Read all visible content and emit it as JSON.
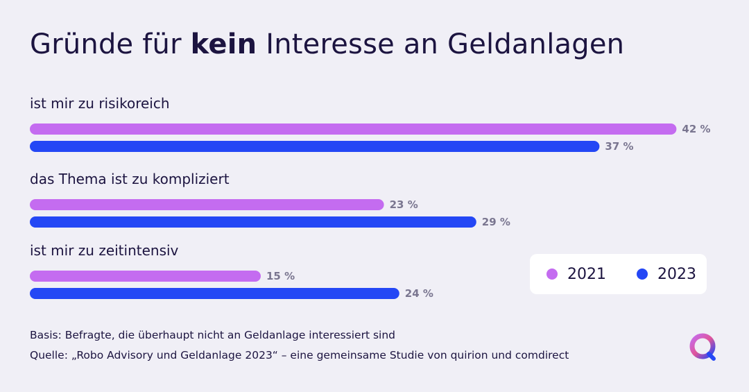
{
  "title": {
    "pre": "Gründe für ",
    "bold": "kein",
    "post": " Interesse an Geldanlagen"
  },
  "legend": [
    {
      "name": "2021",
      "color": "#c46cf0"
    },
    {
      "name": "2023",
      "color": "#2447f5"
    }
  ],
  "chart_data": {
    "type": "bar",
    "orientation": "horizontal",
    "categories": [
      "ist mir zu risikoreich",
      "das Thema ist zu kompliziert",
      "ist mir zu zeitintensiv"
    ],
    "series": [
      {
        "name": "2021",
        "values": [
          42,
          23,
          15
        ],
        "labels": [
          "42 %",
          "23 %",
          "15 %"
        ],
        "color": "#c46cf0"
      },
      {
        "name": "2023",
        "values": [
          37,
          29,
          24
        ],
        "labels": [
          "37 %",
          "29 %",
          "24 %"
        ],
        "color": "#2447f5"
      }
    ],
    "title": "Gründe für kein Interesse an Geldanlagen",
    "xlabel": "",
    "ylabel": "",
    "grid": false,
    "legend_position": "bottom-right"
  },
  "footer": {
    "basis": "Basis: Befragte, die überhaupt nicht an Geldanlage interessiert sind",
    "source": "Quelle: „Robo Advisory und Geldanlage 2023“ – eine gemeinsame Studie von quirion und comdirect"
  },
  "logo_icon": "quirion-logo-icon"
}
